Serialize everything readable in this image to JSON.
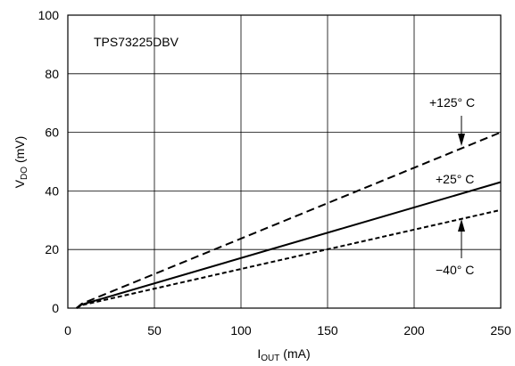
{
  "chart_data": {
    "type": "line",
    "annotation": "TPS73225DBV",
    "xlabel": {
      "main": "I",
      "sub": "OUT",
      "unit": " (mA)"
    },
    "ylabel": {
      "main": "V",
      "sub": "DO",
      "unit": " (mV)"
    },
    "xlim": [
      0,
      250
    ],
    "ylim": [
      0,
      100
    ],
    "xticks": [
      0,
      50,
      100,
      150,
      200,
      250
    ],
    "yticks": [
      0,
      20,
      40,
      60,
      80,
      100
    ],
    "xtick_labels": [
      "0",
      "50",
      "100",
      "150",
      "200",
      "250"
    ],
    "ytick_labels": [
      "0",
      "20",
      "40",
      "60",
      "80",
      "100"
    ],
    "grid": true,
    "series": [
      {
        "name": "+125°C",
        "label": "+125° C",
        "style": "long-dash",
        "x": [
          5,
          8,
          250
        ],
        "y": [
          0,
          1.5,
          60
        ]
      },
      {
        "name": "+25°C",
        "label": "+25° C",
        "style": "solid",
        "x": [
          5,
          8,
          250
        ],
        "y": [
          0,
          1.2,
          43
        ]
      },
      {
        "name": "-40°C",
        "label": "−40° C",
        "style": "short-dash",
        "x": [
          5,
          8,
          250
        ],
        "y": [
          0,
          1.0,
          33.5
        ]
      }
    ]
  }
}
